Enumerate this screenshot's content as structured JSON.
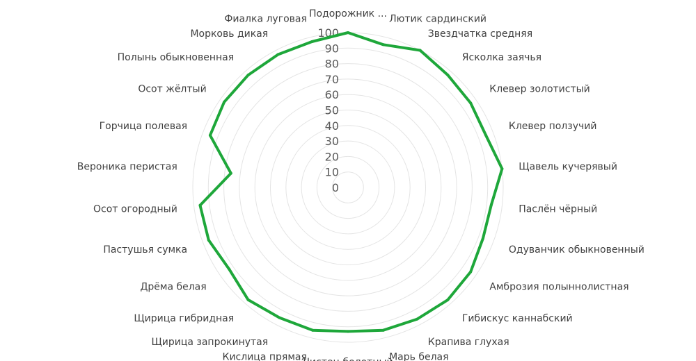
{
  "chart_data": {
    "type": "radar",
    "categories": [
      "Подорожник ...",
      "Лютик сардинский",
      "Звездчатка средняя",
      "Ясколка заячья",
      "Клевер золотистый",
      "Клевер ползучий",
      "Щавель кучерявый",
      "Паслён чёрный",
      "Одуванчик обыкновенный",
      "Амброзия полыннолистная",
      "Гибискус каннабский",
      "Крапива глухая",
      "Марь белая",
      "Чистец болотный",
      "Кислица прямая",
      "Щирица запрокинутая",
      "Щирица гибридная",
      "Дрёма белая",
      "Пастушья сумка",
      "Осот огородный",
      "Вероника перистая",
      "Горчица полевая",
      "Осот жёлтый",
      "Полынь обыкновенная",
      "Морковь дикая",
      "Фиалка луговая"
    ],
    "series": [
      {
        "values": [
          100,
          95,
          100,
          97,
          96,
          95,
          100,
          93,
          93,
          96,
          97,
          96,
          95,
          93,
          95,
          95,
          97,
          93,
          96,
          96,
          76,
          95,
          97,
          97,
          97,
          97
        ],
        "color": "#1ea73a"
      }
    ],
    "axis": {
      "min": 0,
      "max": 100,
      "step": 10,
      "tick_labels": [
        "0",
        "10",
        "20",
        "30",
        "40",
        "50",
        "60",
        "70",
        "80",
        "90",
        "100"
      ]
    },
    "grid": true,
    "legend": "none"
  }
}
